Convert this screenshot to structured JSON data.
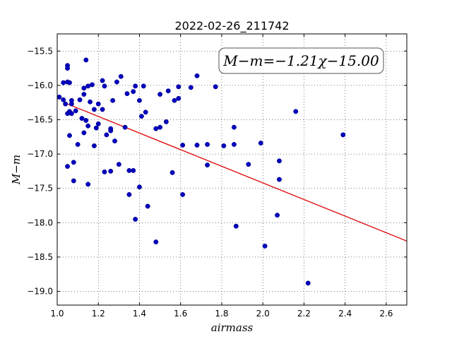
{
  "chart_data": {
    "type": "scatter",
    "title": "2022-02-26_211742",
    "xlabel": "airmass",
    "ylabel": "M−m",
    "xlim": [
      1.0,
      2.7
    ],
    "ylim": [
      -19.2,
      -15.25
    ],
    "y_inverted": true,
    "xticks": [
      1.0,
      1.2,
      1.4,
      1.6,
      1.8,
      2.0,
      2.2,
      2.4,
      2.6
    ],
    "xtick_labels": [
      "1.0",
      "1.2",
      "1.4",
      "1.6",
      "1.8",
      "2.0",
      "2.2",
      "2.4",
      "2.6"
    ],
    "yticks": [
      -15.5,
      -16.0,
      -16.5,
      -17.0,
      -17.5,
      -18.0,
      -18.5,
      -19.0
    ],
    "ytick_labels": [
      "−15.5",
      "−16.0",
      "−16.5",
      "−17.0",
      "−17.5",
      "−18.0",
      "−18.5",
      "−19.0"
    ],
    "grid": true,
    "annotation": "M−m=−1.21χ−15.00",
    "annotation_position": "top-right",
    "marker_color": "#0000bf",
    "fit_color": "#dd0000",
    "fit": {
      "slope": -1.21,
      "intercept": -15.0,
      "x_range": [
        1.05,
        2.7
      ]
    },
    "points": [
      [
        1.01,
        -16.17
      ],
      [
        1.03,
        -16.21
      ],
      [
        1.03,
        -15.96
      ],
      [
        1.04,
        -16.27
      ],
      [
        1.05,
        -15.71
      ],
      [
        1.05,
        -15.75
      ],
      [
        1.05,
        -15.95
      ],
      [
        1.05,
        -16.41
      ],
      [
        1.05,
        -17.18
      ],
      [
        1.06,
        -16.38
      ],
      [
        1.06,
        -16.73
      ],
      [
        1.06,
        -15.96
      ],
      [
        1.07,
        -16.22
      ],
      [
        1.07,
        -16.27
      ],
      [
        1.07,
        -16.41
      ],
      [
        1.08,
        -17.12
      ],
      [
        1.08,
        -17.39
      ],
      [
        1.09,
        -16.37
      ],
      [
        1.1,
        -16.86
      ],
      [
        1.11,
        -16.21
      ],
      [
        1.12,
        -16.48
      ],
      [
        1.13,
        -16.13
      ],
      [
        1.13,
        -16.69
      ],
      [
        1.13,
        -16.04
      ],
      [
        1.14,
        -15.63
      ],
      [
        1.14,
        -16.51
      ],
      [
        1.15,
        -16.01
      ],
      [
        1.15,
        -16.59
      ],
      [
        1.15,
        -17.44
      ],
      [
        1.16,
        -16.24
      ],
      [
        1.17,
        -15.99
      ],
      [
        1.18,
        -16.35
      ],
      [
        1.18,
        -16.88
      ],
      [
        1.19,
        -16.62
      ],
      [
        1.2,
        -16.56
      ],
      [
        1.2,
        -16.27
      ],
      [
        1.22,
        -16.35
      ],
      [
        1.22,
        -15.93
      ],
      [
        1.23,
        -16.01
      ],
      [
        1.23,
        -17.26
      ],
      [
        1.24,
        -16.72
      ],
      [
        1.26,
        -16.63
      ],
      [
        1.26,
        -16.66
      ],
      [
        1.26,
        -17.25
      ],
      [
        1.27,
        -16.22
      ],
      [
        1.28,
        -16.81
      ],
      [
        1.29,
        -15.95
      ],
      [
        1.3,
        -17.15
      ],
      [
        1.31,
        -15.87
      ],
      [
        1.33,
        -16.61
      ],
      [
        1.34,
        -16.12
      ],
      [
        1.35,
        -17.24
      ],
      [
        1.35,
        -17.59
      ],
      [
        1.37,
        -16.09
      ],
      [
        1.37,
        -17.24
      ],
      [
        1.38,
        -16.01
      ],
      [
        1.38,
        -17.95
      ],
      [
        1.4,
        -16.22
      ],
      [
        1.4,
        -17.48
      ],
      [
        1.41,
        -16.45
      ],
      [
        1.42,
        -16.01
      ],
      [
        1.43,
        -16.39
      ],
      [
        1.44,
        -17.76
      ],
      [
        1.48,
        -16.63
      ],
      [
        1.48,
        -18.28
      ],
      [
        1.5,
        -16.13
      ],
      [
        1.5,
        -16.61
      ],
      [
        1.53,
        -16.53
      ],
      [
        1.54,
        -16.08
      ],
      [
        1.56,
        -17.27
      ],
      [
        1.57,
        -16.22
      ],
      [
        1.59,
        -16.19
      ],
      [
        1.59,
        -16.02
      ],
      [
        1.61,
        -16.87
      ],
      [
        1.61,
        -17.59
      ],
      [
        1.65,
        -16.03
      ],
      [
        1.68,
        -15.86
      ],
      [
        1.68,
        -16.87
      ],
      [
        1.73,
        -16.86
      ],
      [
        1.73,
        -17.16
      ],
      [
        1.77,
        -16.02
      ],
      [
        1.81,
        -16.88
      ],
      [
        1.86,
        -16.86
      ],
      [
        1.86,
        -16.61
      ],
      [
        1.87,
        -18.05
      ],
      [
        1.93,
        -17.15
      ],
      [
        1.99,
        -16.84
      ],
      [
        2.01,
        -18.34
      ],
      [
        2.07,
        -17.89
      ],
      [
        2.08,
        -17.1
      ],
      [
        2.08,
        -17.37
      ],
      [
        2.16,
        -16.38
      ],
      [
        2.22,
        -18.88
      ],
      [
        2.39,
        -16.72
      ]
    ]
  }
}
